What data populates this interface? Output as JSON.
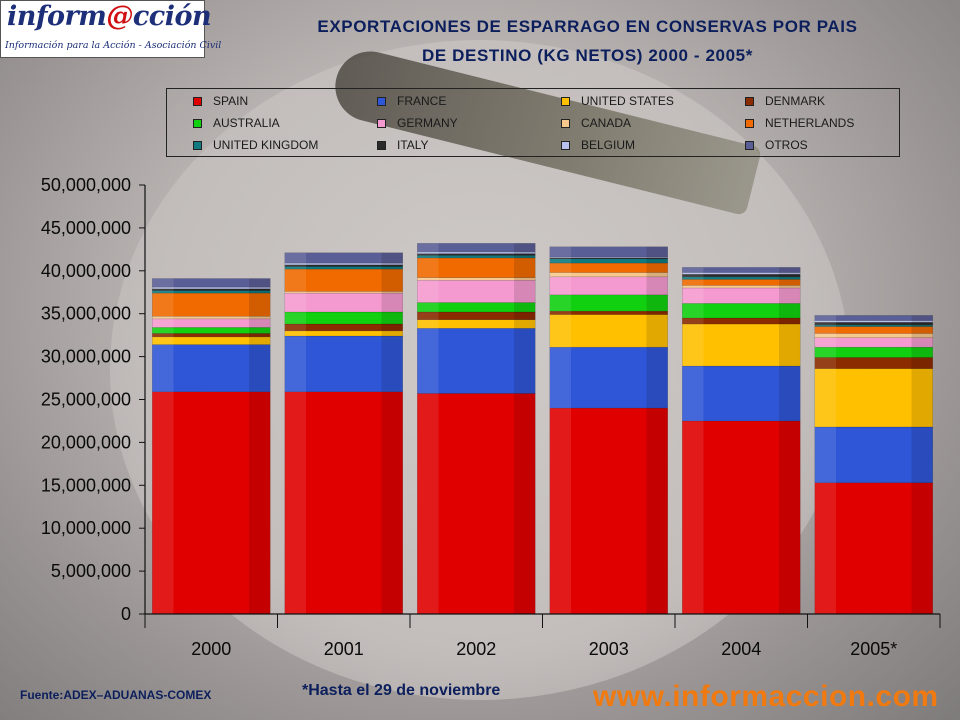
{
  "logo": {
    "word_prefix": "inform",
    "word_at": "@",
    "word_suffix": "cción",
    "tagline": "Información para la Acción - Asociación Civil"
  },
  "footer": {
    "source": "Fuente:ADEX–ADUANAS-COMEX",
    "footnote": "*Hasta el 29 de noviembre",
    "website": "www.informaccion.com"
  },
  "chart_data": {
    "type": "bar",
    "stacked": true,
    "title": "EXPORTACIONES DE ESPARRAGO EN CONSERVAS POR PAIS DE DESTINO (KG NETOS) 2000 - 2005*",
    "title_lines": [
      "EXPORTACIONES DE ESPARRAGO EN CONSERVAS POR PAIS",
      "DE DESTINO (KG NETOS) 2000 - 2005*"
    ],
    "xlabel": "",
    "ylabel": "",
    "categories": [
      "2000",
      "2001",
      "2002",
      "2003",
      "2004",
      "2005*"
    ],
    "ylim": [
      0,
      50000000
    ],
    "yticks": [
      0,
      5000000,
      10000000,
      15000000,
      20000000,
      25000000,
      30000000,
      35000000,
      40000000,
      45000000,
      50000000
    ],
    "ytick_labels": [
      "0",
      "5,000,000",
      "10,000,000",
      "15,000,000",
      "20,000,000",
      "25,000,000",
      "30,000,000",
      "35,000,000",
      "40,000,000",
      "45,000,000",
      "50,000,000"
    ],
    "grid": false,
    "legend_position": "top",
    "series": [
      {
        "name": "SPAIN",
        "color": "#e00000",
        "values": [
          25900000,
          25900000,
          25700000,
          24000000,
          22500000,
          15300000
        ]
      },
      {
        "name": "FRANCE",
        "color": "#2f56d6",
        "values": [
          5500000,
          6500000,
          7600000,
          7100000,
          6400000,
          6500000
        ]
      },
      {
        "name": "UNITED STATES",
        "color": "#ffc000",
        "values": [
          900000,
          600000,
          1000000,
          3800000,
          4900000,
          6800000
        ]
      },
      {
        "name": "DENMARK",
        "color": "#8b2b00",
        "values": [
          400000,
          800000,
          900000,
          400000,
          700000,
          1300000
        ]
      },
      {
        "name": "AUSTRALIA",
        "color": "#10d010",
        "values": [
          700000,
          1400000,
          1100000,
          1900000,
          1700000,
          1200000
        ]
      },
      {
        "name": "GERMANY",
        "color": "#f59ad0",
        "values": [
          1000000,
          2200000,
          2600000,
          2100000,
          1800000,
          1100000
        ]
      },
      {
        "name": "CANADA",
        "color": "#f6c88e",
        "values": [
          300000,
          200000,
          300000,
          500000,
          300000,
          500000
        ]
      },
      {
        "name": "NETHERLANDS",
        "color": "#f06a00",
        "values": [
          2700000,
          2600000,
          2300000,
          1100000,
          700000,
          800000
        ]
      },
      {
        "name": "UNITED KINGDOM",
        "color": "#107a80",
        "values": [
          300000,
          300000,
          300000,
          500000,
          300000,
          200000
        ]
      },
      {
        "name": "ITALY",
        "color": "#2a2a2a",
        "values": [
          200000,
          200000,
          200000,
          100000,
          300000,
          300000
        ]
      },
      {
        "name": "BELGIUM",
        "color": "#b8c0ee",
        "values": [
          200000,
          200000,
          200000,
          100000,
          200000,
          200000
        ]
      },
      {
        "name": "OTROS",
        "color": "#5a5e96",
        "values": [
          1000000,
          1200000,
          1000000,
          1200000,
          600000,
          600000
        ]
      }
    ]
  }
}
